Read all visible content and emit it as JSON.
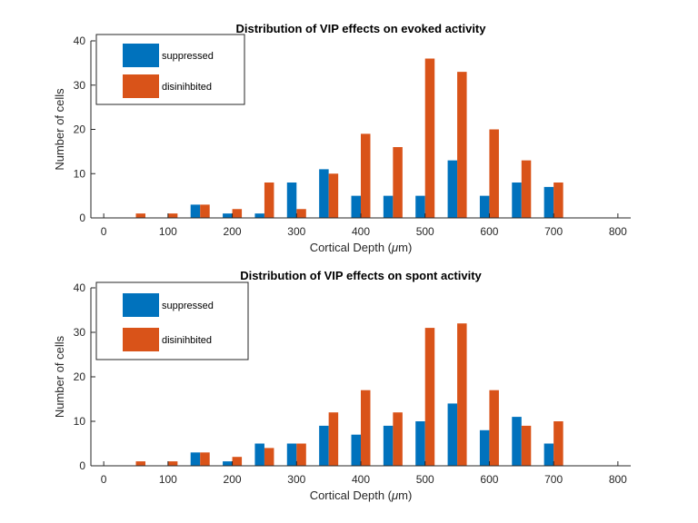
{
  "chart_data": [
    {
      "type": "bar",
      "title": "Distribution of VIP effects on evoked activity",
      "xlabel_main": "Cortical Depth (",
      "xlabel_unit": "μ",
      "xlabel_tail": "m)",
      "ylabel": "Number of cells",
      "xlim": [
        -20,
        820
      ],
      "ylim": [
        0,
        40
      ],
      "xticks": [
        0,
        100,
        200,
        300,
        400,
        500,
        600,
        700,
        800
      ],
      "yticks": [
        0,
        10,
        20,
        30,
        40
      ],
      "legend_position": "top-left",
      "x": [
        0,
        50,
        100,
        150,
        200,
        250,
        300,
        350,
        400,
        450,
        500,
        550,
        600,
        650,
        700,
        750,
        800
      ],
      "series": [
        {
          "name": "suppressed",
          "color": "#0072BD",
          "values": [
            0,
            0,
            0,
            3,
            1,
            1,
            8,
            11,
            5,
            5,
            5,
            13,
            5,
            8,
            7,
            0,
            0
          ]
        },
        {
          "name": "disinihbited",
          "color": "#D95319",
          "values": [
            0,
            1,
            1,
            3,
            2,
            8,
            2,
            10,
            19,
            16,
            36,
            33,
            20,
            13,
            8,
            0,
            0
          ]
        }
      ]
    },
    {
      "type": "bar",
      "title": "Distribution of VIP effects on spont activity",
      "xlabel_main": "Cortical Depth (",
      "xlabel_unit": "μ",
      "xlabel_tail": "m)",
      "ylabel": "Number of cells",
      "xlim": [
        -20,
        820
      ],
      "ylim": [
        0,
        40
      ],
      "xticks": [
        0,
        100,
        200,
        300,
        400,
        500,
        600,
        700,
        800
      ],
      "yticks": [
        0,
        10,
        20,
        30,
        40
      ],
      "legend_position": "top-left",
      "x": [
        0,
        50,
        100,
        150,
        200,
        250,
        300,
        350,
        400,
        450,
        500,
        550,
        600,
        650,
        700,
        750,
        800
      ],
      "series": [
        {
          "name": "suppressed",
          "color": "#0072BD",
          "values": [
            0,
            0,
            0,
            3,
            1,
            5,
            5,
            9,
            7,
            9,
            10,
            14,
            8,
            11,
            5,
            0,
            0
          ]
        },
        {
          "name": "disinihbited",
          "color": "#D95319",
          "values": [
            0,
            1,
            1,
            3,
            2,
            4,
            5,
            12,
            17,
            12,
            31,
            32,
            17,
            9,
            10,
            0,
            0
          ]
        }
      ]
    }
  ]
}
